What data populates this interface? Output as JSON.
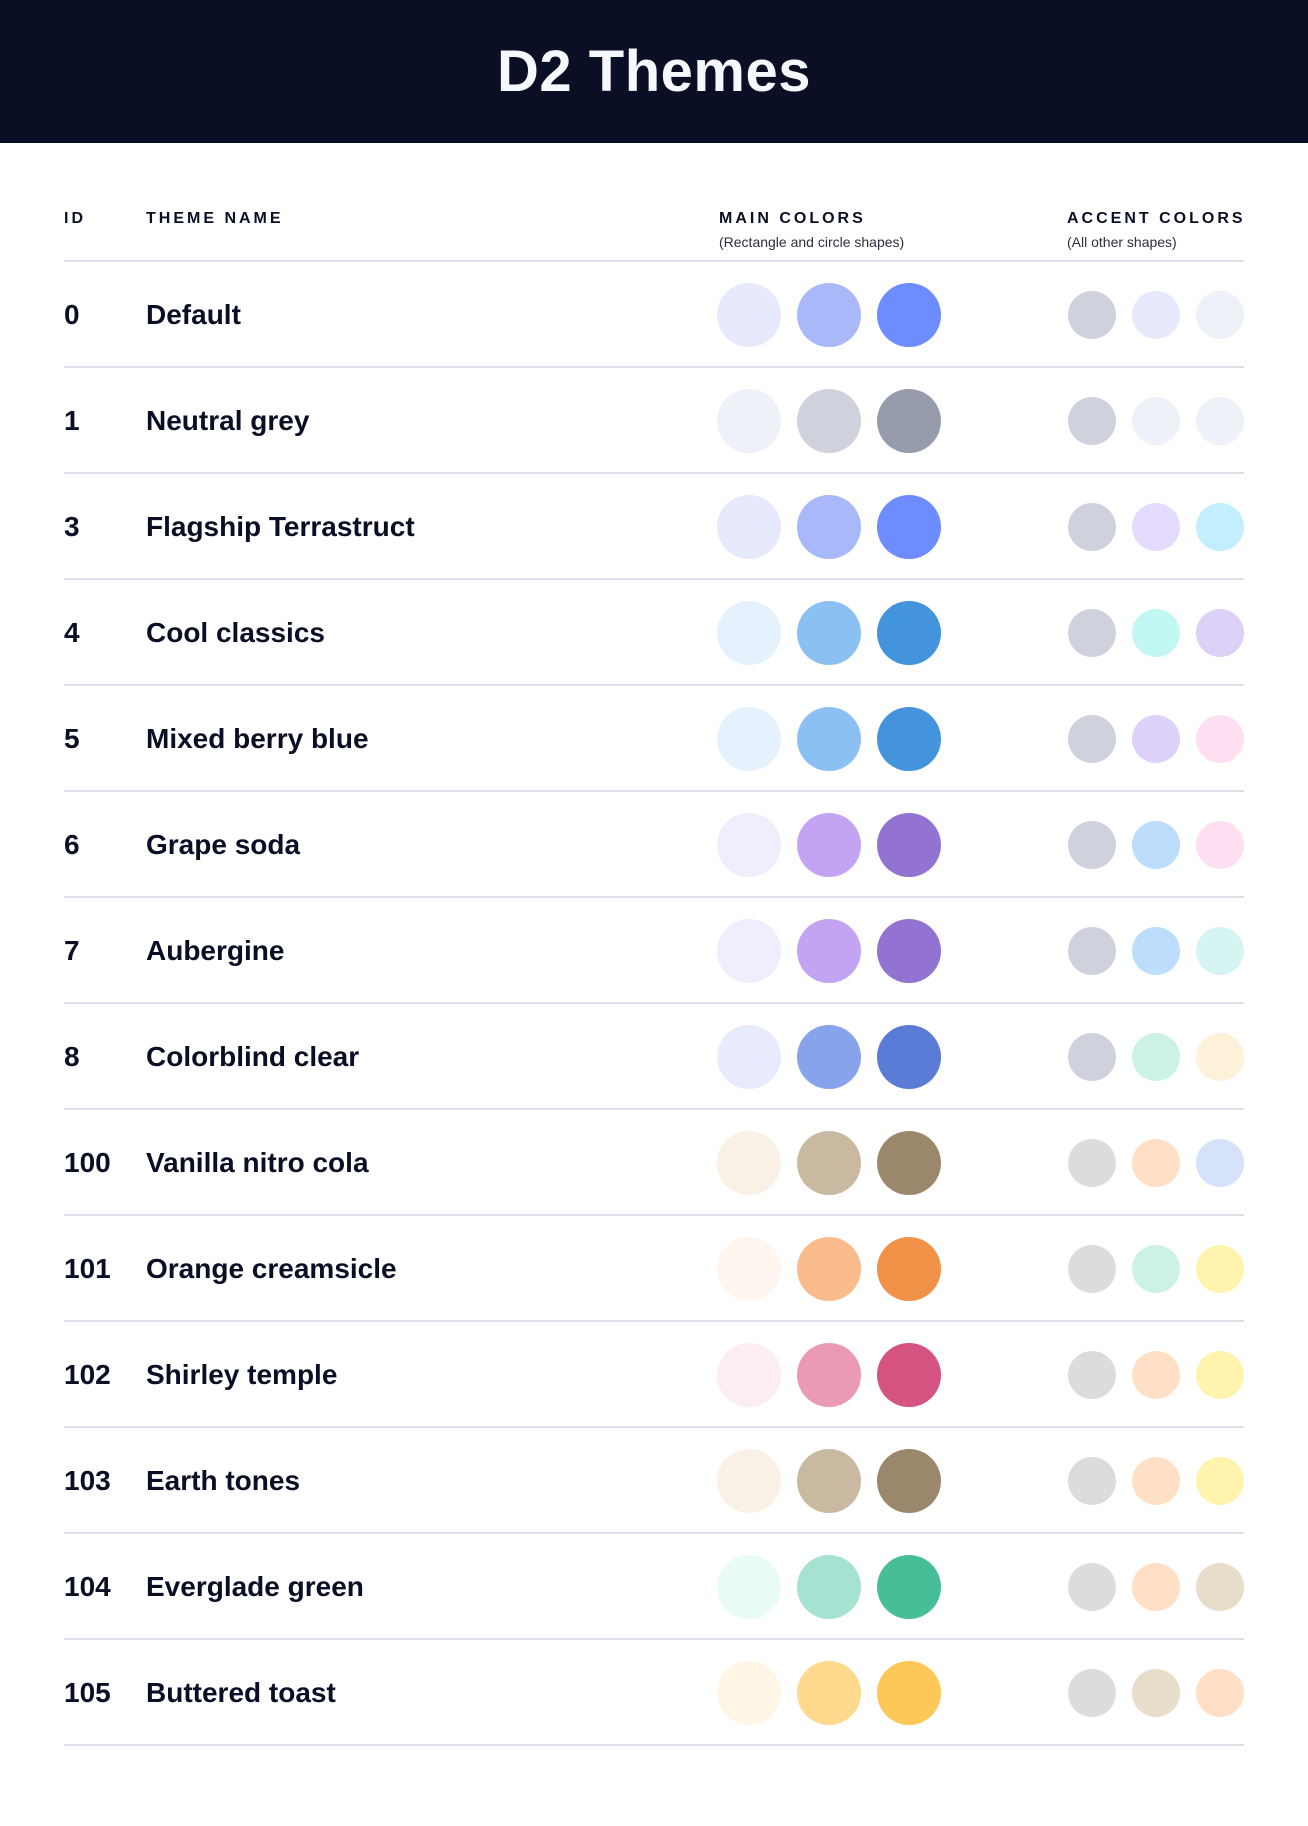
{
  "header": {
    "title": "D2 Themes"
  },
  "columns": {
    "id": "ID",
    "name": "THEME NAME",
    "main": "MAIN COLORS",
    "main_sub": "(Rectangle and circle shapes)",
    "accent": "ACCENT COLORS",
    "accent_sub": "(All other shapes)"
  },
  "themes": [
    {
      "id": "0",
      "name": "Default",
      "main": [
        "#E7E9FD",
        "#A8B8F8",
        "#6D8CFF"
      ],
      "accent": [
        "#CFD2DD",
        "#E7E9FD",
        "#EEF1F8"
      ]
    },
    {
      "id": "1",
      "name": "Neutral grey",
      "main": [
        "#EEF1F8",
        "#CFD2DD",
        "#979CAD"
      ],
      "accent": [
        "#CFD2DD",
        "#EEF1F8",
        "#EEF1F8"
      ]
    },
    {
      "id": "3",
      "name": "Flagship Terrastruct",
      "main": [
        "#E7E9FD",
        "#A8B8F8",
        "#6D8CFF"
      ],
      "accent": [
        "#CFD2DD",
        "#E4DAFD",
        "#C2EEFE"
      ]
    },
    {
      "id": "4",
      "name": "Cool classics",
      "main": [
        "#E5F2FD",
        "#8BC0F3",
        "#4494DD"
      ],
      "accent": [
        "#CFD2DD",
        "#C3F7F4",
        "#DDD1F8"
      ]
    },
    {
      "id": "5",
      "name": "Mixed berry blue",
      "main": [
        "#E5F2FD",
        "#8BC0F3",
        "#4494DD"
      ],
      "accent": [
        "#CFD2DD",
        "#DDD1F8",
        "#FDDFF1"
      ]
    },
    {
      "id": "6",
      "name": "Grape soda",
      "main": [
        "#F0EDFD",
        "#C3A4F3",
        "#9273D1"
      ],
      "accent": [
        "#CFD2DD",
        "#BCDDFB",
        "#FDDFF1"
      ]
    },
    {
      "id": "7",
      "name": "Aubergine",
      "main": [
        "#F0EDFD",
        "#C3A4F3",
        "#9273D1"
      ],
      "accent": [
        "#CFD2DD",
        "#BCDDFB",
        "#D6F4F1"
      ]
    },
    {
      "id": "8",
      "name": "Colorblind clear",
      "main": [
        "#E7EBFD",
        "#87A3EC",
        "#5A7BD6"
      ],
      "accent": [
        "#CFD2DD",
        "#CCF2E5",
        "#FDF1DA"
      ]
    },
    {
      "id": "100",
      "name": "Vanilla nitro cola",
      "main": [
        "#F9F1E6",
        "#C9B9A0",
        "#9B876C"
      ],
      "accent": [
        "#DEDCDA",
        "#FFE0C7",
        "#D6E1FA"
      ]
    },
    {
      "id": "101",
      "name": "Orange creamsicle",
      "main": [
        "#FFF6F0",
        "#FABC8C",
        "#F29248"
      ],
      "accent": [
        "#DEDCDA",
        "#CCF2E5",
        "#FFF4AE"
      ]
    },
    {
      "id": "102",
      "name": "Shirley temple",
      "main": [
        "#FCEDF2",
        "#EB9AB5",
        "#D45380"
      ],
      "accent": [
        "#DEDCDA",
        "#FFE0C7",
        "#FFF4AE"
      ]
    },
    {
      "id": "103",
      "name": "Earth tones",
      "main": [
        "#F9F1E6",
        "#C9B9A0",
        "#9B876C"
      ],
      "accent": [
        "#DEDCDA",
        "#FFE0C7",
        "#FFF4AE"
      ]
    },
    {
      "id": "104",
      "name": "Everglade green",
      "main": [
        "#E8FBF4",
        "#A5E2D1",
        "#48BE98"
      ],
      "accent": [
        "#DEDCDA",
        "#FFE0C7",
        "#E8DCCA"
      ]
    },
    {
      "id": "105",
      "name": "Buttered toast",
      "main": [
        "#FFF6E6",
        "#FFDA8E",
        "#FDC857"
      ],
      "accent": [
        "#DEDCDA",
        "#E8DCCA",
        "#FFE0C7"
      ]
    }
  ]
}
